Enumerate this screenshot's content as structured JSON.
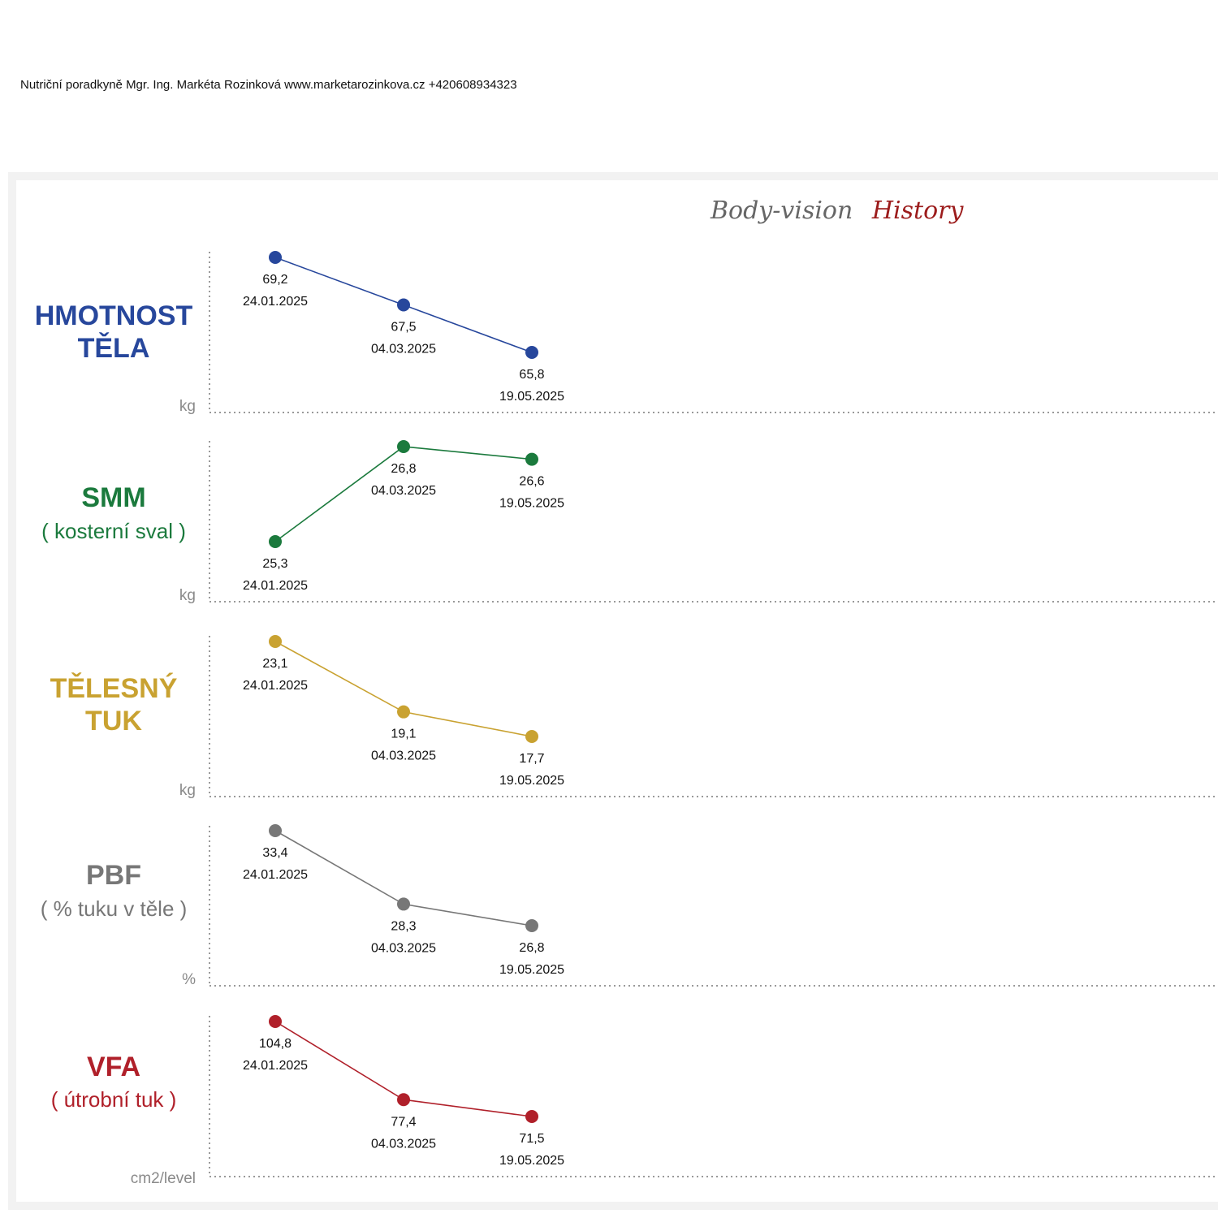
{
  "header": {
    "text": "Nutriční poradkyně Mgr. Ing. Markéta Rozinková www.marketarozinkova.cz +420608934323"
  },
  "chart_title": {
    "part1": "Body-vision",
    "part2": "History",
    "part1_color": "#666666",
    "part2_color": "#9c1c1c"
  },
  "chart_data": [
    {
      "type": "line",
      "title_lines": [
        "HMOTNOST",
        "TĚLA"
      ],
      "subtitle": "",
      "unit": "kg",
      "color": "#27479c",
      "x": [
        "24.01.2025",
        "04.03.2025",
        "19.05.2025"
      ],
      "labels": [
        "69,2",
        "67,5",
        "65,8"
      ],
      "values": [
        69.2,
        67.5,
        65.8
      ]
    },
    {
      "type": "line",
      "title_lines": [
        "SMM"
      ],
      "subtitle": "( kosterní sval )",
      "unit": "kg",
      "color": "#1b7a3d",
      "x": [
        "24.01.2025",
        "04.03.2025",
        "19.05.2025"
      ],
      "labels": [
        "25,3",
        "26,8",
        "26,6"
      ],
      "values": [
        25.3,
        26.8,
        26.6
      ]
    },
    {
      "type": "line",
      "title_lines": [
        "TĚLESNÝ",
        "TUK"
      ],
      "subtitle": "",
      "unit": "kg",
      "color": "#c9a231",
      "x": [
        "24.01.2025",
        "04.03.2025",
        "19.05.2025"
      ],
      "labels": [
        "23,1",
        "19,1",
        "17,7"
      ],
      "values": [
        23.1,
        19.1,
        17.7
      ]
    },
    {
      "type": "line",
      "title_lines": [
        "PBF"
      ],
      "subtitle": "( % tuku v těle )",
      "unit": "%",
      "color": "#777777",
      "x": [
        "24.01.2025",
        "04.03.2025",
        "19.05.2025"
      ],
      "labels": [
        "33,4",
        "28,3",
        "26,8"
      ],
      "values": [
        33.4,
        28.3,
        26.8
      ]
    },
    {
      "type": "line",
      "title_lines": [
        "VFA"
      ],
      "subtitle": "( útrobní tuk )",
      "unit": "cm2/level",
      "color": "#b0202a",
      "x": [
        "24.01.2025",
        "04.03.2025",
        "19.05.2025"
      ],
      "labels": [
        "104,8",
        "77,4",
        "71,5"
      ],
      "values": [
        104.8,
        77.4,
        71.5
      ]
    }
  ]
}
